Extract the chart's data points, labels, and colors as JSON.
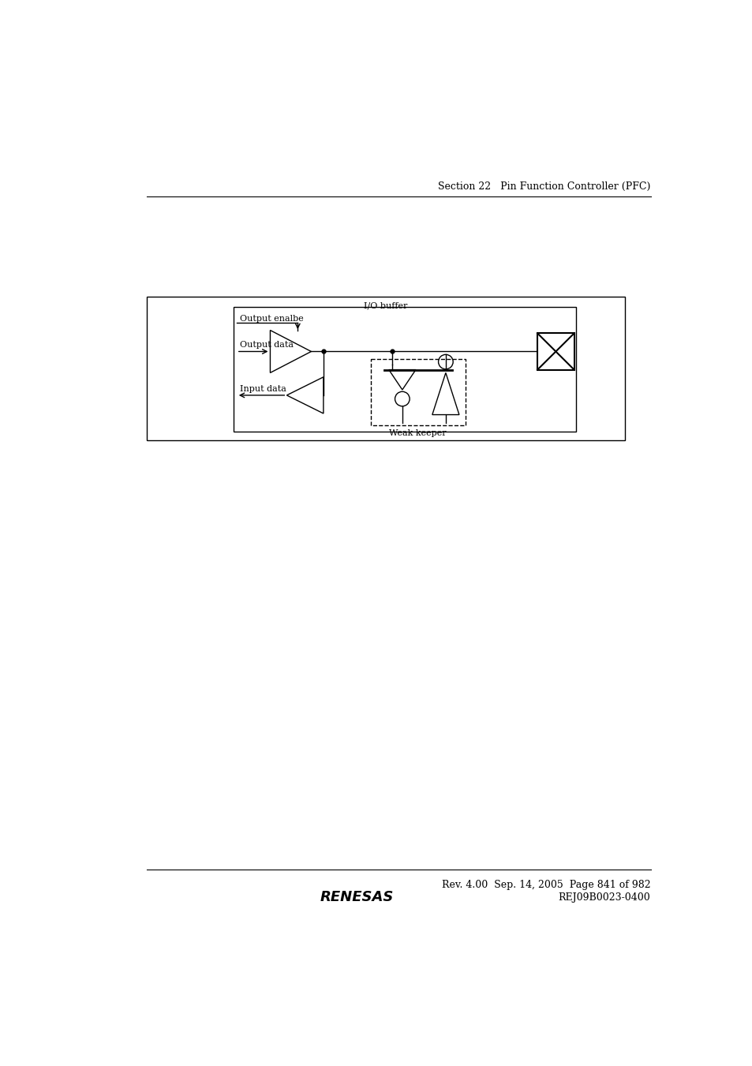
{
  "page_header_text": "Section 22   Pin Function Controller (PFC)",
  "footer_rev": "Rev. 4.00  Sep. 14, 2005  Page 841 of 982",
  "footer_code": "REJ09B0023-0400",
  "background_color": "#ffffff",
  "line_color": "#000000",
  "text_color": "#000000",
  "io_buffer_label": "I/O buffer",
  "output_enable_label": "Output enalbe",
  "output_data_label": "Output data",
  "input_data_label": "Input data",
  "weak_keeper_label": "Weak keeper"
}
